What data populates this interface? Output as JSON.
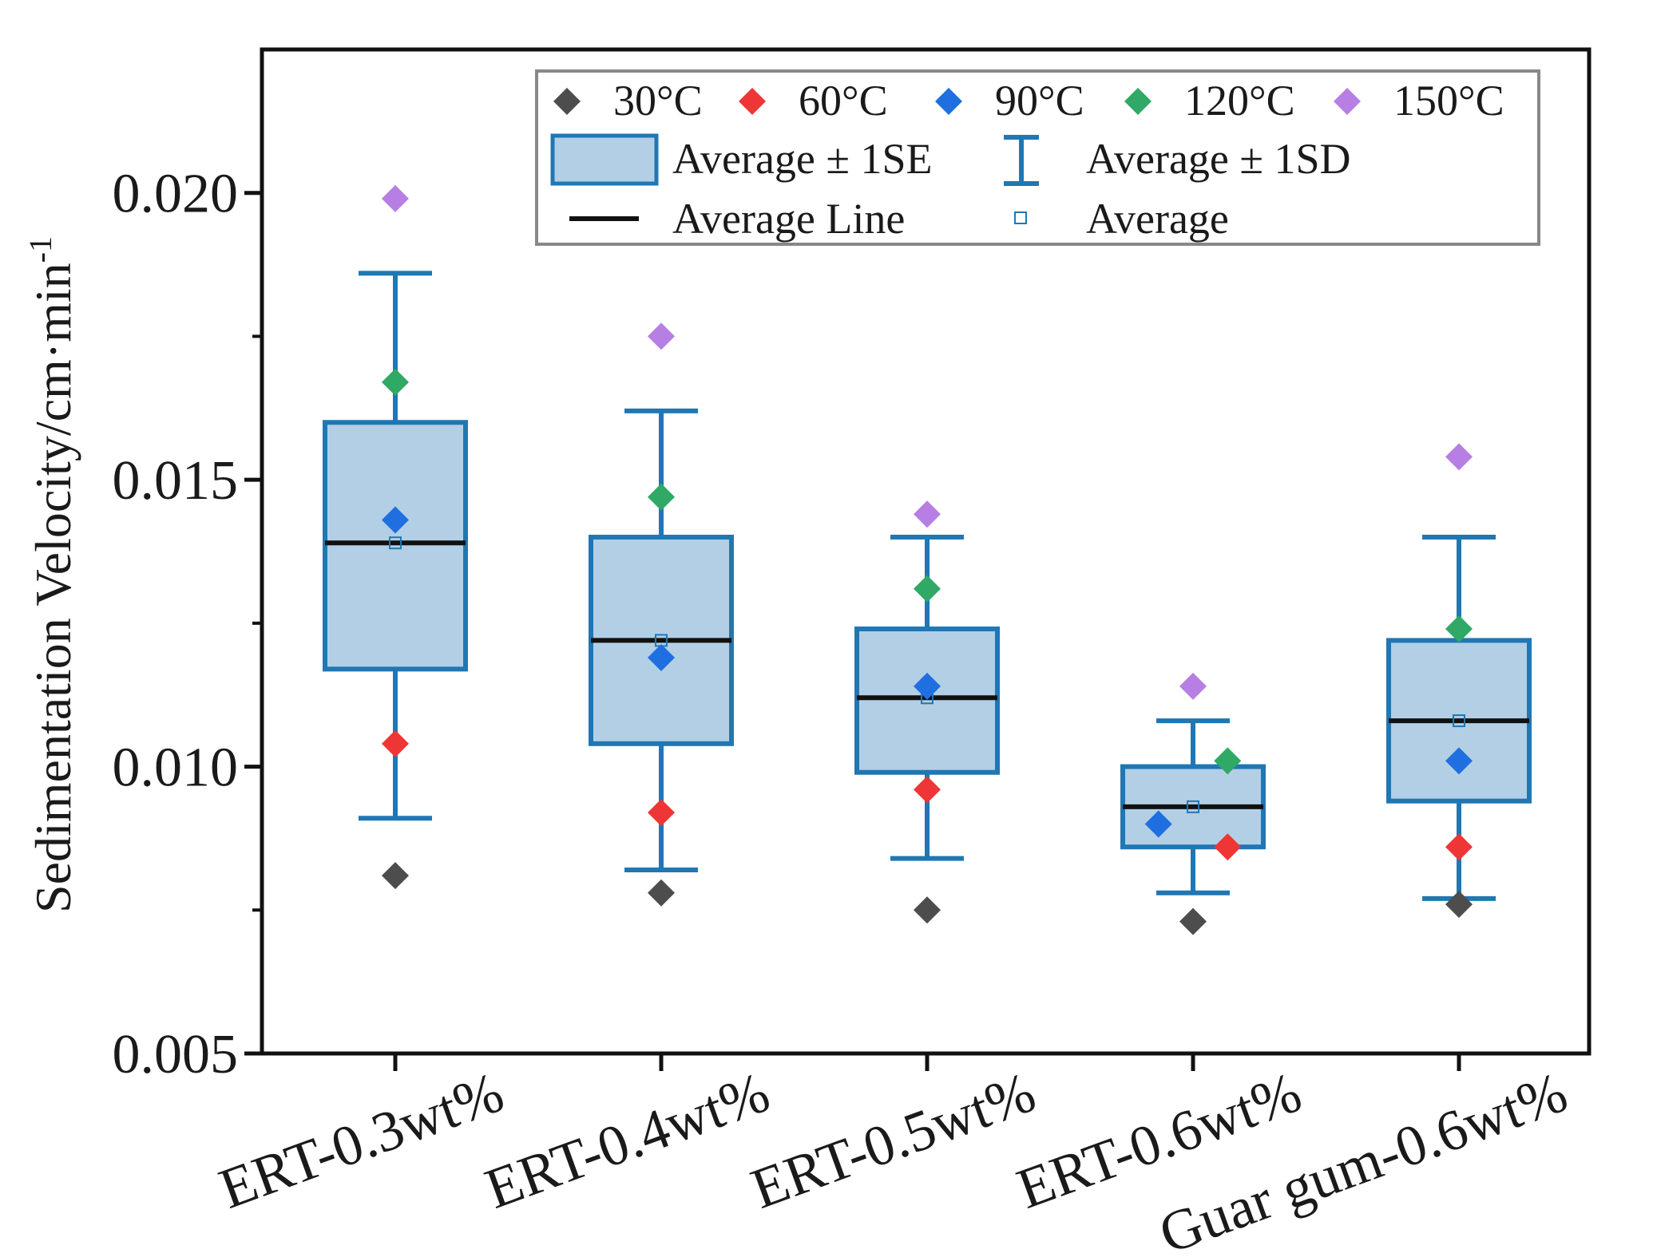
{
  "chart_data": {
    "type": "box",
    "title": "",
    "xlabel": "",
    "ylabel": "Sedimentation Velocity/cm·min",
    "ylabel_superscript": "-1",
    "ylim": [
      0.005,
      0.0225
    ],
    "yticks": [
      0.005,
      0.01,
      0.015,
      0.02
    ],
    "ytick_labels": [
      "0.005",
      "0.010",
      "0.015",
      "0.020"
    ],
    "categories": [
      "ERT-0.3wt%",
      "ERT-0.4wt%",
      "ERT-0.5wt%",
      "ERT-0.6wt%",
      "Guar gum-0.6wt%"
    ],
    "boxes": [
      {
        "category": "ERT-0.3wt%",
        "mean": 0.0139,
        "se_low": 0.0117,
        "se_high": 0.016,
        "sd_low": 0.0091,
        "sd_high": 0.0186
      },
      {
        "category": "ERT-0.4wt%",
        "mean": 0.0122,
        "se_low": 0.0104,
        "se_high": 0.014,
        "sd_low": 0.0082,
        "sd_high": 0.0162
      },
      {
        "category": "ERT-0.5wt%",
        "mean": 0.0112,
        "se_low": 0.0099,
        "se_high": 0.0124,
        "sd_low": 0.0084,
        "sd_high": 0.014
      },
      {
        "category": "ERT-0.6wt%",
        "mean": 0.0093,
        "se_low": 0.0086,
        "se_high": 0.01,
        "sd_low": 0.0078,
        "sd_high": 0.0108
      },
      {
        "category": "Guar gum-0.6wt%",
        "mean": 0.0108,
        "se_low": 0.0094,
        "se_high": 0.0122,
        "sd_low": 0.0077,
        "sd_high": 0.014
      }
    ],
    "series": [
      {
        "name": "30°C",
        "color": "#4d4d4d",
        "values": [
          0.0081,
          0.0078,
          0.0075,
          0.0073,
          0.0076
        ],
        "offsets": [
          0,
          0,
          0,
          0,
          0
        ]
      },
      {
        "name": "60°C",
        "color": "#ee3636",
        "values": [
          0.0104,
          0.0092,
          0.0096,
          0.0086,
          0.0086
        ],
        "offsets": [
          0,
          0,
          0,
          0.13,
          0
        ]
      },
      {
        "name": "90°C",
        "color": "#1f6fe0",
        "values": [
          0.0143,
          0.0119,
          0.0114,
          0.009,
          0.0101
        ],
        "offsets": [
          0,
          0,
          0,
          -0.13,
          0
        ]
      },
      {
        "name": "120°C",
        "color": "#2fa965",
        "values": [
          0.0167,
          0.0147,
          0.0131,
          0.0101,
          0.0124
        ],
        "offsets": [
          0,
          0,
          0,
          0.13,
          0
        ]
      },
      {
        "name": "150°C",
        "color": "#b77fe3",
        "values": [
          0.0199,
          0.0175,
          0.0144,
          0.0114,
          0.0154
        ],
        "offsets": [
          0,
          0,
          0,
          0,
          0
        ]
      }
    ],
    "legend": {
      "position": "top-right",
      "temperature_entries": [
        "30°C",
        "60°C",
        "90°C",
        "120°C",
        "150°C"
      ],
      "box_label": "Average ± 1SE",
      "whisker_label": "Average ± 1SD",
      "line_label": "Average Line",
      "mean_label": "Average"
    },
    "colors": {
      "box_fill": "#b3cfe5",
      "box_stroke": "#1f77b4",
      "mean_line": "#111111",
      "axis": "#111111",
      "legend_border": "#888888"
    }
  }
}
